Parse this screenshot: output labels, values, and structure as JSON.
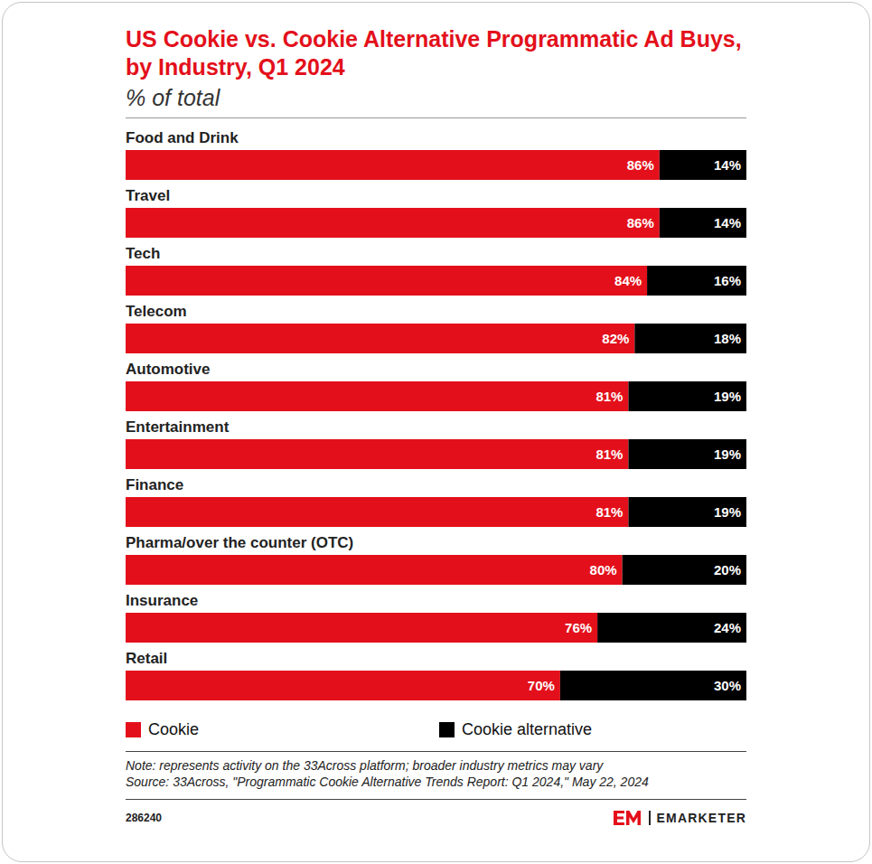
{
  "chart_data": {
    "type": "bar",
    "orientation": "horizontal",
    "stacked": true,
    "data_labels": true,
    "tick_labels": "y",
    "grid": false,
    "legend": "bottom",
    "title": "US Cookie vs. Cookie Alternative Programmatic Ad Buys, by Industry, Q1 2024",
    "subtitle": "% of total",
    "categories": [
      "Food and Drink",
      "Travel",
      "Tech",
      "Telecom",
      "Automotive",
      "Entertainment",
      "Finance",
      "Pharma/over the counter (OTC)",
      "Insurance",
      "Retail"
    ],
    "xlim": [
      0,
      100
    ],
    "series": [
      {
        "name": "Cookie",
        "color": "#e3101b",
        "values": [
          86,
          86,
          84,
          82,
          81,
          81,
          81,
          80,
          76,
          70
        ],
        "value_labels": [
          "86%",
          "86%",
          "84%",
          "82%",
          "81%",
          "81%",
          "81%",
          "80%",
          "76%",
          "70%"
        ]
      },
      {
        "name": "Cookie alternative",
        "color": "#000000",
        "values": [
          14,
          14,
          16,
          18,
          19,
          19,
          19,
          20,
          24,
          30
        ],
        "value_labels": [
          "14%",
          "14%",
          "16%",
          "18%",
          "19%",
          "19%",
          "19%",
          "20%",
          "24%",
          "30%"
        ]
      }
    ],
    "note": "Note: represents activity on the 33Across platform; broader industry metrics may vary",
    "source": "Source: 33Across, \"Programmatic Cookie Alternative Trends Report: Q1 2024,\" May 22, 2024",
    "chart_id": "286240",
    "brand": "EMARKETER"
  }
}
